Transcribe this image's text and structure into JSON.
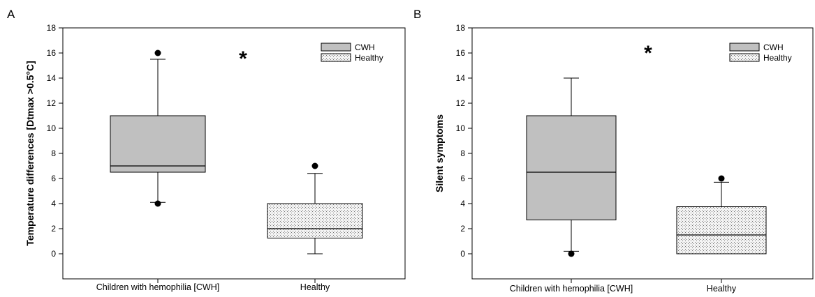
{
  "colors": {
    "cwh_fill": "#c0c0c0",
    "healthy_fill": "#f4f4f4",
    "healthy_dots": "#707070",
    "stroke": "#000000"
  },
  "chart_data": [
    {
      "type": "box",
      "panel_label": "A",
      "ylabel": "Temperature differences [Dtmax >0.5°C]",
      "ylim": [
        -2,
        18
      ],
      "yticks": [
        0,
        2,
        4,
        6,
        8,
        10,
        12,
        14,
        16,
        18
      ],
      "categories": [
        "Children with hemophilia [CWH]",
        "Healthy"
      ],
      "legend": [
        "CWH",
        "Healthy"
      ],
      "legend_position": "top-right",
      "annotation": "*",
      "series": [
        {
          "name": "CWH",
          "whisker_low": 4.1,
          "q1": 6.5,
          "median": 7.0,
          "q3": 11.0,
          "whisker_high": 15.5,
          "outliers": [
            4.0,
            16.0
          ]
        },
        {
          "name": "Healthy",
          "whisker_low": 0.0,
          "q1": 1.25,
          "median": 2.0,
          "q3": 4.0,
          "whisker_high": 6.4,
          "outliers": [
            7.0
          ]
        }
      ]
    },
    {
      "type": "box",
      "panel_label": "B",
      "ylabel": "Silent symptoms",
      "ylim": [
        -2,
        18
      ],
      "yticks": [
        0,
        2,
        4,
        6,
        8,
        10,
        12,
        14,
        16,
        18
      ],
      "categories": [
        "Children with hemophilia [CWH]",
        "Healthy"
      ],
      "legend": [
        "CWH",
        "Healthy"
      ],
      "legend_position": "top-right",
      "annotation": "*",
      "series": [
        {
          "name": "CWH",
          "whisker_low": 0.2,
          "q1": 2.7,
          "median": 6.5,
          "q3": 11.0,
          "whisker_high": 14.0,
          "outliers": [
            0.0
          ]
        },
        {
          "name": "Healthy",
          "whisker_low": 0.0,
          "q1": 0.0,
          "median": 1.5,
          "q3": 3.75,
          "whisker_high": 5.7,
          "outliers": [
            6.0
          ]
        }
      ]
    }
  ]
}
